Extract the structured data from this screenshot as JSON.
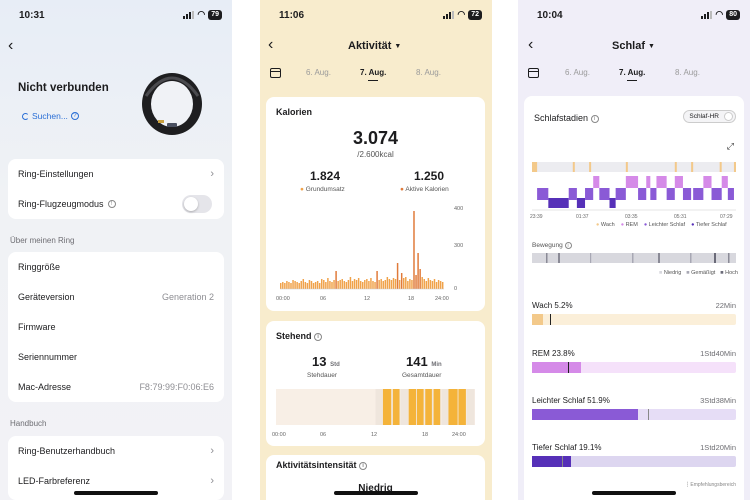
{
  "screen1": {
    "status_time": "10:31",
    "battery": "79",
    "device_status": "Nicht verbunden",
    "search_label": "Suchen...",
    "rows1": [
      {
        "label": "Ring-Einstellungen"
      },
      {
        "label": "Ring-Flugzeugmodus"
      }
    ],
    "section_about": "Über meinen Ring",
    "rows2": [
      {
        "label": "Ringgröße",
        "value": ""
      },
      {
        "label": "Geräteversion",
        "value": "Generation 2"
      },
      {
        "label": "Firmware",
        "value": ""
      },
      {
        "label": "Seriennummer",
        "value": ""
      },
      {
        "label": "Mac-Adresse",
        "value": "F8:79:99:F0:06:E6"
      }
    ],
    "section_manual": "Handbuch",
    "rows3": [
      {
        "label": "Ring-Benutzerhandbuch"
      },
      {
        "label": "LED-Farbreferenz"
      }
    ]
  },
  "screen2": {
    "status_time": "11:06",
    "battery": "72",
    "title": "Aktivität",
    "dates": [
      "6. Aug.",
      "7. Aug.",
      "8. Aug."
    ],
    "calories": {
      "title": "Kalorien",
      "total": "3.074",
      "goal": "/2.600kcal",
      "basal": "1.824",
      "basal_label": "Grundumsatz",
      "active": "1.250",
      "active_label": "Aktive Kalorien",
      "y_ticks": [
        "400",
        "300",
        "0"
      ],
      "x_ticks": [
        "00:00",
        "06",
        "12",
        "18",
        "24:00"
      ]
    },
    "standing": {
      "title": "Stehend",
      "hours": "13",
      "hours_unit": "Std",
      "hours_label": "Stehdauer",
      "minutes": "141",
      "minutes_unit": "Min",
      "minutes_label": "Gesamtdauer",
      "x_ticks": [
        "00:00",
        "06",
        "12",
        "18",
        "24:00"
      ]
    },
    "intensity": {
      "title": "Aktivitätsintensität",
      "level": "Niedrig"
    }
  },
  "screen3": {
    "status_time": "10:04",
    "battery": "80",
    "title": "Schlaf",
    "dates": [
      "6. Aug.",
      "7. Aug.",
      "8. Aug."
    ],
    "stages_title": "Schlafstadien",
    "hr_toggle": "Schlaf-HR",
    "x_ticks": [
      "23:39",
      "01:37",
      "03:35",
      "05:31",
      "07:29"
    ],
    "legend": [
      "Wach",
      "REM",
      "Leichter Schlaf",
      "Tiefer Schlaf"
    ],
    "movement_title": "Bewegung",
    "movement_legend": [
      "Niedrig",
      "Gemäßigt",
      "Hoch"
    ],
    "stages": [
      {
        "label": "Wach 5.2%",
        "duration": "22Min",
        "fraction": 0.052
      },
      {
        "label": "REM 23.8%",
        "duration": "1Std40Min",
        "fraction": 0.238
      },
      {
        "label": "Leichter Schlaf 51.9%",
        "duration": "3Std38Min",
        "fraction": 0.519
      },
      {
        "label": "Tiefer Schlaf 19.1%",
        "duration": "1Std20Min",
        "fraction": 0.191
      }
    ],
    "ref_label": "Empfehlungsbereich"
  },
  "colors": {
    "orange": "#f0a24a",
    "orange_dark": "#e07a3a",
    "yellow": "#f4b33a",
    "wake": "#f3c98a",
    "rem": "#d58ae8",
    "light": "#8a5ad6",
    "deep": "#5630b8"
  }
}
